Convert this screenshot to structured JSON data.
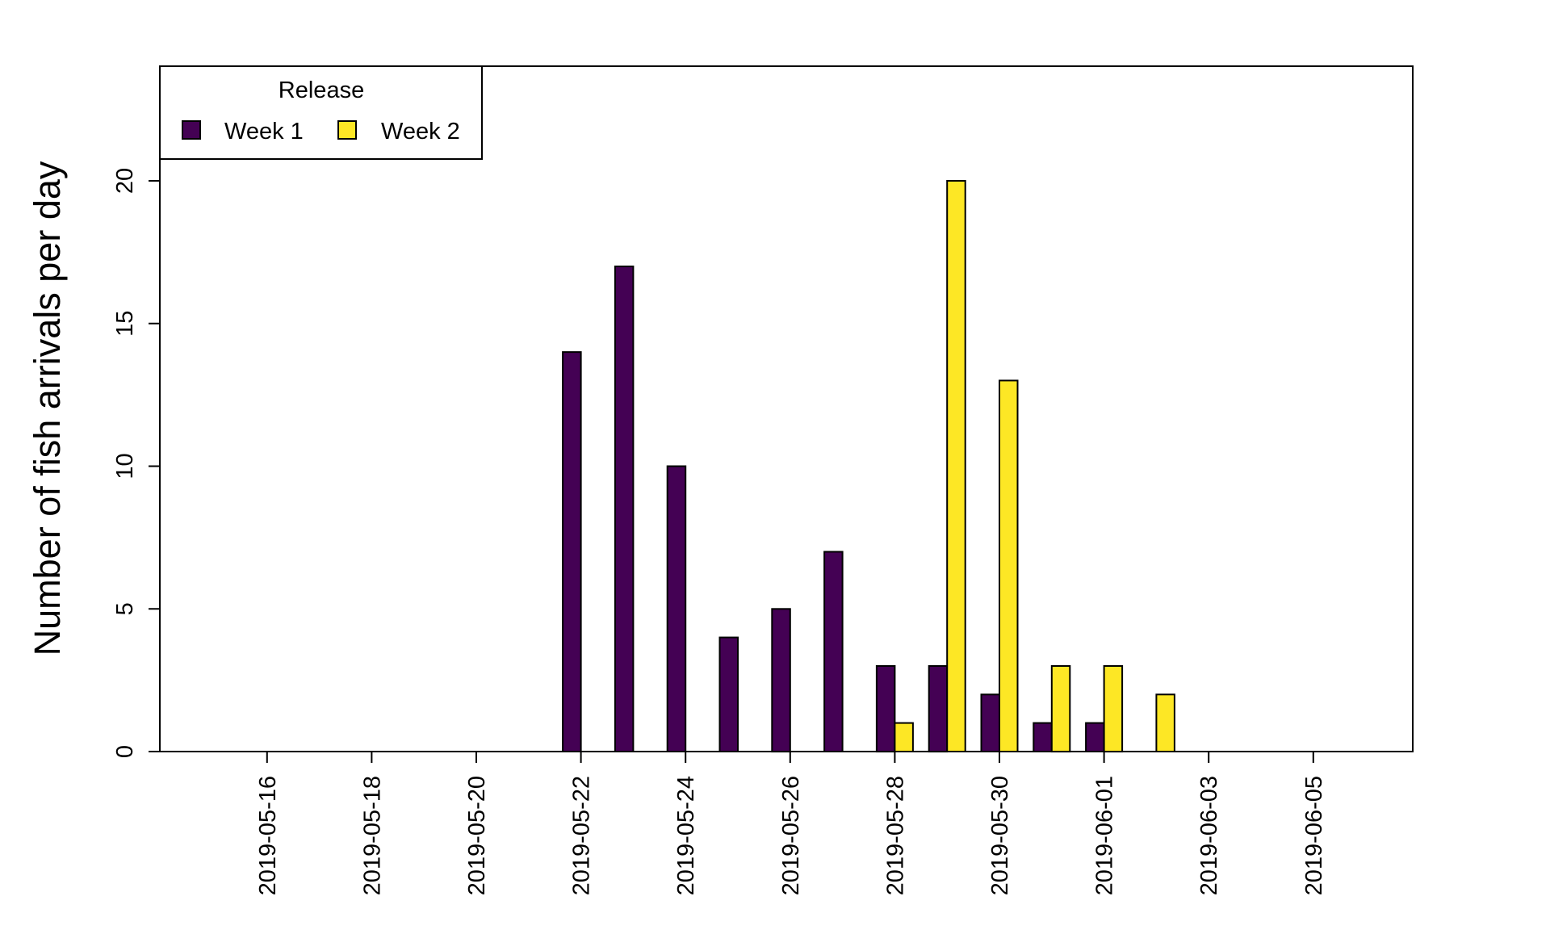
{
  "chart_data": {
    "type": "bar",
    "grouped": true,
    "title": "",
    "xlabel": "",
    "ylabel": "Number of fish arrivals per day",
    "ylim": [
      0,
      24
    ],
    "y_ticks": [
      0,
      5,
      10,
      15,
      20
    ],
    "x_dates": [
      "2019-05-15",
      "2019-05-16",
      "2019-05-17",
      "2019-05-18",
      "2019-05-19",
      "2019-05-20",
      "2019-05-21",
      "2019-05-22",
      "2019-05-23",
      "2019-05-24",
      "2019-05-25",
      "2019-05-26",
      "2019-05-27",
      "2019-05-28",
      "2019-05-29",
      "2019-05-30",
      "2019-05-31",
      "2019-06-01",
      "2019-06-02",
      "2019-06-03",
      "2019-06-04",
      "2019-06-05",
      "2019-06-06",
      "2019-06-07"
    ],
    "x_tick_labels": [
      "2019-05-16",
      "2019-05-18",
      "2019-05-20",
      "2019-05-22",
      "2019-05-24",
      "2019-05-26",
      "2019-05-28",
      "2019-05-30",
      "2019-06-01",
      "2019-06-03",
      "2019-06-05"
    ],
    "legend": {
      "title": "Release",
      "position": "top-left"
    },
    "series": [
      {
        "name": "Week 1",
        "color": "#440154",
        "values": [
          0,
          0,
          0,
          0,
          0,
          0,
          0,
          14,
          17,
          10,
          4,
          5,
          7,
          3,
          3,
          2,
          1,
          1,
          0,
          0,
          0,
          0,
          0,
          0
        ]
      },
      {
        "name": "Week 2",
        "color": "#fde725",
        "values": [
          0,
          0,
          0,
          0,
          0,
          0,
          0,
          0,
          0,
          0,
          0,
          0,
          0,
          1,
          20,
          13,
          3,
          3,
          2,
          0,
          0,
          0,
          0,
          0
        ]
      }
    ]
  }
}
